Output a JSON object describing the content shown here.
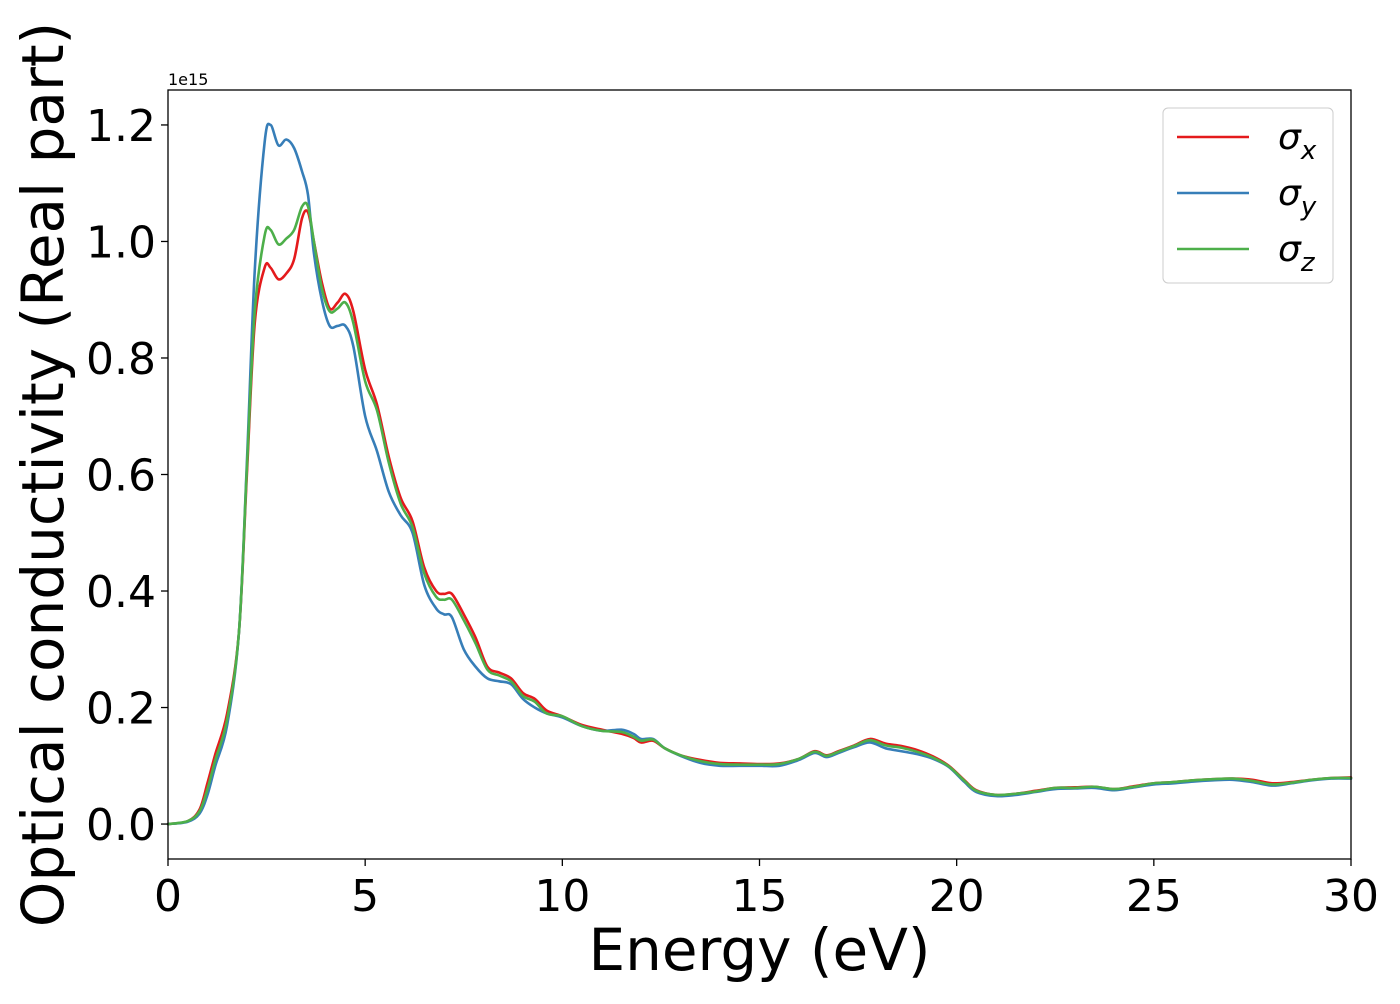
{
  "chart_data": {
    "type": "line",
    "xlabel": "Energy (eV)",
    "ylabel": "Optical conductivity (Real part)",
    "offset_text": "1e15",
    "xlim": [
      0,
      30
    ],
    "ylim": [
      -0.06,
      1.26
    ],
    "x_ticks": [
      0,
      5,
      10,
      15,
      20,
      25,
      30
    ],
    "x_tick_labels": [
      "0",
      "5",
      "10",
      "15",
      "20",
      "25",
      "30"
    ],
    "y_ticks": [
      0.0,
      0.2,
      0.4,
      0.6,
      0.8,
      1.0,
      1.2
    ],
    "y_tick_labels": [
      "0.0",
      "0.2",
      "0.4",
      "0.6",
      "0.8",
      "1.0",
      "1.2"
    ],
    "grid": false,
    "legend_position": "top-right",
    "series": [
      {
        "name": "σx",
        "symbol": "σ",
        "subscript": "x",
        "color": "#e41a1c",
        "points": [
          [
            0,
            0
          ],
          [
            0.5,
            0.005
          ],
          [
            0.8,
            0.025
          ],
          [
            1.0,
            0.07
          ],
          [
            1.2,
            0.12
          ],
          [
            1.5,
            0.19
          ],
          [
            1.8,
            0.33
          ],
          [
            2.0,
            0.6
          ],
          [
            2.2,
            0.86
          ],
          [
            2.45,
            0.955
          ],
          [
            2.6,
            0.955
          ],
          [
            2.8,
            0.935
          ],
          [
            3.0,
            0.945
          ],
          [
            3.2,
            0.97
          ],
          [
            3.4,
            1.04
          ],
          [
            3.55,
            1.05
          ],
          [
            3.7,
            1.0
          ],
          [
            3.9,
            0.93
          ],
          [
            4.1,
            0.885
          ],
          [
            4.3,
            0.895
          ],
          [
            4.5,
            0.91
          ],
          [
            4.7,
            0.88
          ],
          [
            5.0,
            0.78
          ],
          [
            5.3,
            0.72
          ],
          [
            5.6,
            0.63
          ],
          [
            5.9,
            0.56
          ],
          [
            6.2,
            0.52
          ],
          [
            6.5,
            0.44
          ],
          [
            6.8,
            0.4
          ],
          [
            7.0,
            0.395
          ],
          [
            7.2,
            0.395
          ],
          [
            7.5,
            0.36
          ],
          [
            7.8,
            0.32
          ],
          [
            8.1,
            0.27
          ],
          [
            8.4,
            0.26
          ],
          [
            8.7,
            0.25
          ],
          [
            9.0,
            0.225
          ],
          [
            9.3,
            0.215
          ],
          [
            9.6,
            0.195
          ],
          [
            10.0,
            0.185
          ],
          [
            10.5,
            0.17
          ],
          [
            11.0,
            0.162
          ],
          [
            11.5,
            0.155
          ],
          [
            11.8,
            0.148
          ],
          [
            12.0,
            0.14
          ],
          [
            12.3,
            0.143
          ],
          [
            12.6,
            0.13
          ],
          [
            13.0,
            0.118
          ],
          [
            13.5,
            0.11
          ],
          [
            14.0,
            0.105
          ],
          [
            14.5,
            0.104
          ],
          [
            15.0,
            0.103
          ],
          [
            15.5,
            0.104
          ],
          [
            16.0,
            0.112
          ],
          [
            16.4,
            0.125
          ],
          [
            16.7,
            0.118
          ],
          [
            17.0,
            0.125
          ],
          [
            17.4,
            0.135
          ],
          [
            17.8,
            0.146
          ],
          [
            18.2,
            0.138
          ],
          [
            18.6,
            0.134
          ],
          [
            19.0,
            0.127
          ],
          [
            19.4,
            0.116
          ],
          [
            19.8,
            0.1
          ],
          [
            20.2,
            0.075
          ],
          [
            20.5,
            0.058
          ],
          [
            21.0,
            0.05
          ],
          [
            21.5,
            0.052
          ],
          [
            22.0,
            0.057
          ],
          [
            22.5,
            0.062
          ],
          [
            23.0,
            0.063
          ],
          [
            23.5,
            0.064
          ],
          [
            24.0,
            0.06
          ],
          [
            24.5,
            0.065
          ],
          [
            25.0,
            0.07
          ],
          [
            25.5,
            0.072
          ],
          [
            26.0,
            0.075
          ],
          [
            26.5,
            0.077
          ],
          [
            27.0,
            0.078
          ],
          [
            27.5,
            0.076
          ],
          [
            28.0,
            0.07
          ],
          [
            28.5,
            0.072
          ],
          [
            29.0,
            0.076
          ],
          [
            29.5,
            0.079
          ],
          [
            30.0,
            0.08
          ]
        ]
      },
      {
        "name": "σy",
        "symbol": "σ",
        "subscript": "y",
        "color": "#377eb8",
        "points": [
          [
            0,
            0
          ],
          [
            0.5,
            0.004
          ],
          [
            0.8,
            0.018
          ],
          [
            1.0,
            0.05
          ],
          [
            1.2,
            0.1
          ],
          [
            1.5,
            0.17
          ],
          [
            1.8,
            0.33
          ],
          [
            2.0,
            0.62
          ],
          [
            2.2,
            0.95
          ],
          [
            2.45,
            1.17
          ],
          [
            2.6,
            1.2
          ],
          [
            2.8,
            1.165
          ],
          [
            3.0,
            1.175
          ],
          [
            3.2,
            1.16
          ],
          [
            3.4,
            1.12
          ],
          [
            3.55,
            1.08
          ],
          [
            3.7,
            0.98
          ],
          [
            3.9,
            0.9
          ],
          [
            4.1,
            0.855
          ],
          [
            4.3,
            0.855
          ],
          [
            4.5,
            0.855
          ],
          [
            4.7,
            0.82
          ],
          [
            5.0,
            0.7
          ],
          [
            5.3,
            0.64
          ],
          [
            5.6,
            0.57
          ],
          [
            5.9,
            0.53
          ],
          [
            6.2,
            0.5
          ],
          [
            6.5,
            0.41
          ],
          [
            6.8,
            0.37
          ],
          [
            7.0,
            0.36
          ],
          [
            7.2,
            0.355
          ],
          [
            7.5,
            0.3
          ],
          [
            7.8,
            0.27
          ],
          [
            8.1,
            0.25
          ],
          [
            8.4,
            0.245
          ],
          [
            8.7,
            0.24
          ],
          [
            9.0,
            0.215
          ],
          [
            9.3,
            0.2
          ],
          [
            9.6,
            0.19
          ],
          [
            10.0,
            0.183
          ],
          [
            10.5,
            0.168
          ],
          [
            11.0,
            0.16
          ],
          [
            11.5,
            0.162
          ],
          [
            11.8,
            0.155
          ],
          [
            12.0,
            0.146
          ],
          [
            12.3,
            0.146
          ],
          [
            12.6,
            0.13
          ],
          [
            13.0,
            0.117
          ],
          [
            13.5,
            0.105
          ],
          [
            14.0,
            0.1
          ],
          [
            14.5,
            0.1
          ],
          [
            15.0,
            0.1
          ],
          [
            15.5,
            0.1
          ],
          [
            16.0,
            0.11
          ],
          [
            16.4,
            0.122
          ],
          [
            16.7,
            0.115
          ],
          [
            17.0,
            0.122
          ],
          [
            17.4,
            0.132
          ],
          [
            17.8,
            0.14
          ],
          [
            18.2,
            0.13
          ],
          [
            18.6,
            0.125
          ],
          [
            19.0,
            0.12
          ],
          [
            19.4,
            0.112
          ],
          [
            19.8,
            0.098
          ],
          [
            20.2,
            0.072
          ],
          [
            20.5,
            0.055
          ],
          [
            21.0,
            0.048
          ],
          [
            21.5,
            0.05
          ],
          [
            22.0,
            0.055
          ],
          [
            22.5,
            0.06
          ],
          [
            23.0,
            0.061
          ],
          [
            23.5,
            0.062
          ],
          [
            24.0,
            0.058
          ],
          [
            24.5,
            0.063
          ],
          [
            25.0,
            0.068
          ],
          [
            25.5,
            0.07
          ],
          [
            26.0,
            0.073
          ],
          [
            26.5,
            0.075
          ],
          [
            27.0,
            0.076
          ],
          [
            27.5,
            0.072
          ],
          [
            28.0,
            0.066
          ],
          [
            28.5,
            0.07
          ],
          [
            29.0,
            0.075
          ],
          [
            29.5,
            0.078
          ],
          [
            30.0,
            0.078
          ]
        ]
      },
      {
        "name": "σz",
        "symbol": "σ",
        "subscript": "z",
        "color": "#4daf4a",
        "points": [
          [
            0,
            0
          ],
          [
            0.5,
            0.005
          ],
          [
            0.8,
            0.022
          ],
          [
            1.0,
            0.06
          ],
          [
            1.2,
            0.11
          ],
          [
            1.5,
            0.18
          ],
          [
            1.8,
            0.33
          ],
          [
            2.0,
            0.61
          ],
          [
            2.2,
            0.88
          ],
          [
            2.45,
            1.01
          ],
          [
            2.6,
            1.02
          ],
          [
            2.8,
            0.995
          ],
          [
            3.0,
            1.005
          ],
          [
            3.2,
            1.02
          ],
          [
            3.4,
            1.06
          ],
          [
            3.55,
            1.06
          ],
          [
            3.7,
            1.0
          ],
          [
            3.9,
            0.92
          ],
          [
            4.1,
            0.88
          ],
          [
            4.3,
            0.885
          ],
          [
            4.5,
            0.895
          ],
          [
            4.7,
            0.86
          ],
          [
            5.0,
            0.76
          ],
          [
            5.3,
            0.71
          ],
          [
            5.6,
            0.62
          ],
          [
            5.9,
            0.55
          ],
          [
            6.2,
            0.51
          ],
          [
            6.5,
            0.43
          ],
          [
            6.8,
            0.39
          ],
          [
            7.0,
            0.385
          ],
          [
            7.2,
            0.385
          ],
          [
            7.5,
            0.35
          ],
          [
            7.8,
            0.31
          ],
          [
            8.1,
            0.265
          ],
          [
            8.4,
            0.255
          ],
          [
            8.7,
            0.245
          ],
          [
            9.0,
            0.22
          ],
          [
            9.3,
            0.21
          ],
          [
            9.6,
            0.19
          ],
          [
            10.0,
            0.185
          ],
          [
            10.5,
            0.168
          ],
          [
            11.0,
            0.16
          ],
          [
            11.5,
            0.158
          ],
          [
            11.8,
            0.15
          ],
          [
            12.0,
            0.143
          ],
          [
            12.3,
            0.145
          ],
          [
            12.6,
            0.13
          ],
          [
            13.0,
            0.118
          ],
          [
            13.5,
            0.108
          ],
          [
            14.0,
            0.103
          ],
          [
            14.5,
            0.102
          ],
          [
            15.0,
            0.102
          ],
          [
            15.5,
            0.103
          ],
          [
            16.0,
            0.112
          ],
          [
            16.4,
            0.124
          ],
          [
            16.7,
            0.117
          ],
          [
            17.0,
            0.124
          ],
          [
            17.4,
            0.134
          ],
          [
            17.8,
            0.144
          ],
          [
            18.2,
            0.135
          ],
          [
            18.6,
            0.131
          ],
          [
            19.0,
            0.124
          ],
          [
            19.4,
            0.114
          ],
          [
            19.8,
            0.099
          ],
          [
            20.2,
            0.074
          ],
          [
            20.5,
            0.057
          ],
          [
            21.0,
            0.05
          ],
          [
            21.5,
            0.052
          ],
          [
            22.0,
            0.056
          ],
          [
            22.5,
            0.062
          ],
          [
            23.0,
            0.062
          ],
          [
            23.5,
            0.064
          ],
          [
            24.0,
            0.06
          ],
          [
            24.5,
            0.064
          ],
          [
            25.0,
            0.07
          ],
          [
            25.5,
            0.072
          ],
          [
            26.0,
            0.075
          ],
          [
            26.5,
            0.077
          ],
          [
            27.0,
            0.078
          ],
          [
            27.5,
            0.074
          ],
          [
            28.0,
            0.068
          ],
          [
            28.5,
            0.071
          ],
          [
            29.0,
            0.076
          ],
          [
            29.5,
            0.079
          ],
          [
            30.0,
            0.079
          ]
        ]
      }
    ]
  }
}
